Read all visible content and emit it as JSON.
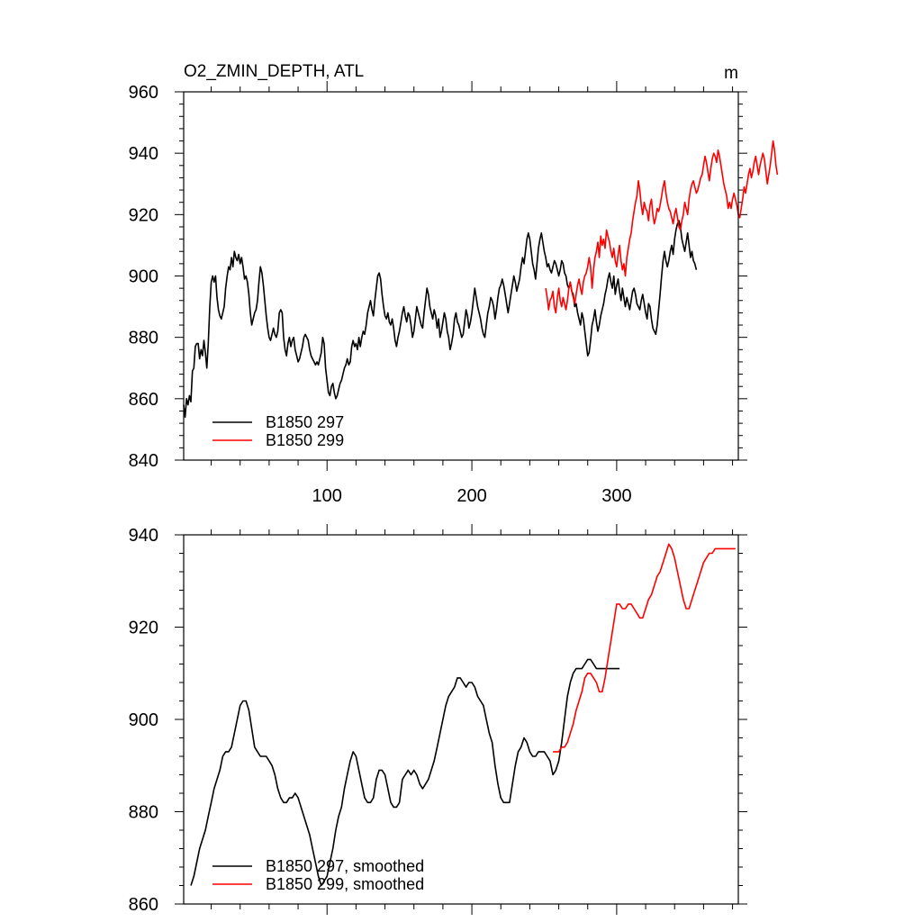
{
  "chart_data": [
    {
      "type": "line",
      "title": "O2_ZMIN_DEPTH, ATL",
      "units": "m",
      "xlim": [
        1,
        384
      ],
      "ylim": [
        840,
        960
      ],
      "yticks": [
        840,
        860,
        880,
        900,
        920,
        940,
        960
      ],
      "xticks": [
        100,
        200,
        300
      ],
      "legend_position": "bottom-left",
      "grid": false,
      "series": [
        {
          "name": "B1850 297",
          "color": "#000000",
          "x_start": 1,
          "x_step": 1,
          "values": [
            858,
            854,
            860,
            858,
            861,
            859,
            869,
            870,
            877,
            878,
            878,
            873,
            876,
            874,
            879,
            875,
            870,
            878,
            890,
            898,
            900,
            898,
            900,
            893,
            889,
            887,
            886,
            888,
            890,
            896,
            900,
            903,
            902,
            906,
            903,
            908,
            906,
            905,
            907,
            904,
            906,
            903,
            899,
            900,
            898,
            894,
            888,
            884,
            886,
            888,
            889,
            892,
            898,
            903,
            901,
            897,
            892,
            887,
            883,
            880,
            879,
            881,
            883,
            881,
            880,
            882,
            888,
            889,
            888,
            880,
            876,
            874,
            878,
            880,
            877,
            879,
            880,
            876,
            874,
            872,
            873,
            875,
            877,
            880,
            881,
            880,
            879,
            876,
            874,
            873,
            872,
            871,
            872,
            871,
            873,
            875,
            880,
            878,
            870,
            866,
            862,
            861,
            864,
            865,
            862,
            860,
            861,
            863,
            865,
            866,
            868,
            870,
            871,
            873,
            871,
            872,
            877,
            879,
            877,
            878,
            876,
            880,
            877,
            880,
            882,
            881,
            884,
            888,
            890,
            892,
            889,
            887,
            892,
            896,
            900,
            901,
            899,
            894,
            890,
            887,
            886,
            888,
            885,
            884,
            886,
            883,
            879,
            877,
            880,
            882,
            885,
            888,
            890,
            887,
            885,
            888,
            887,
            884,
            880,
            882,
            886,
            890,
            888,
            886,
            884,
            883,
            888,
            892,
            896,
            894,
            890,
            888,
            886,
            889,
            887,
            883,
            886,
            880,
            882,
            885,
            888,
            886,
            882,
            880,
            876,
            878,
            881,
            886,
            888,
            885,
            884,
            882,
            880,
            881,
            885,
            889,
            887,
            883,
            885,
            888,
            892,
            896,
            893,
            890,
            888,
            886,
            883,
            881,
            880,
            884,
            888,
            890,
            893,
            892,
            890,
            886,
            889,
            893,
            896,
            897,
            899,
            897,
            894,
            891,
            888,
            891,
            894,
            897,
            900,
            898,
            895,
            897,
            899,
            903,
            906,
            904,
            908,
            912,
            914,
            912,
            908,
            904,
            902,
            899,
            904,
            909,
            912,
            914,
            911,
            908,
            906,
            903,
            904,
            902,
            901,
            903,
            905,
            904,
            902,
            900,
            902,
            905,
            904,
            901,
            900,
            897,
            896,
            898,
            895,
            894,
            890,
            891,
            888,
            886,
            884,
            888,
            886,
            882,
            878,
            874,
            875,
            879,
            884,
            886,
            889,
            885,
            882,
            884,
            887,
            889,
            891,
            894,
            896,
            899,
            901,
            898,
            896,
            900,
            894,
            897,
            899,
            895,
            892,
            896,
            893,
            890,
            893,
            891,
            889,
            892,
            895,
            896,
            894,
            891,
            890,
            889,
            892,
            894,
            891,
            888,
            886,
            891,
            890,
            886,
            883,
            882,
            881,
            884,
            889,
            894,
            900,
            905,
            908,
            905,
            903,
            905,
            908,
            910,
            907,
            912,
            915,
            917,
            918,
            916,
            912,
            910,
            908,
            911,
            914,
            910,
            906,
            908,
            905,
            904,
            902
          ]
        },
        {
          "name": "B1850 299",
          "color": "#ff0000",
          "x_start": 251,
          "x_step": 1,
          "values": [
            896,
            893,
            889,
            892,
            893,
            895,
            890,
            888,
            893,
            896,
            892,
            890,
            893,
            891,
            889,
            892,
            896,
            898,
            895,
            893,
            891,
            894,
            897,
            899,
            896,
            894,
            898,
            900,
            901,
            903,
            906,
            903,
            896,
            902,
            906,
            908,
            911,
            906,
            913,
            910,
            912,
            909,
            915,
            913,
            911,
            908,
            906,
            909,
            905,
            903,
            907,
            910,
            905,
            902,
            904,
            900,
            906,
            909,
            912,
            914,
            918,
            921,
            924,
            926,
            931,
            928,
            923,
            920,
            924,
            922,
            921,
            918,
            923,
            925,
            920,
            917,
            919,
            922,
            921,
            923,
            926,
            929,
            931,
            927,
            924,
            922,
            921,
            919,
            917,
            920,
            922,
            919,
            916,
            915,
            918,
            920,
            924,
            922,
            920,
            925,
            928,
            930,
            931,
            929,
            927,
            928,
            930,
            932,
            933,
            936,
            939,
            937,
            934,
            931,
            935,
            938,
            940,
            939,
            937,
            941,
            939,
            936,
            933,
            930,
            928,
            926,
            922,
            924,
            922,
            925,
            927,
            925,
            923,
            920,
            919,
            922,
            925,
            929,
            927,
            930,
            933,
            935,
            932,
            934,
            937,
            939,
            936,
            933,
            936,
            938,
            940,
            938,
            934,
            930,
            933,
            936,
            940,
            944,
            941,
            936,
            933
          ]
        }
      ]
    },
    {
      "type": "line",
      "xlim": [
        1,
        384
      ],
      "ylim": [
        860,
        940
      ],
      "yticks": [
        860,
        880,
        900,
        920,
        940
      ],
      "legend_position": "bottom-left",
      "grid": false,
      "series": [
        {
          "name": "B1850 297, smoothed",
          "color": "#000000",
          "x": [
            6,
            8,
            10,
            12,
            14,
            16,
            18,
            20,
            22,
            24,
            26,
            28,
            30,
            32,
            34,
            36,
            38,
            40,
            42,
            44,
            46,
            48,
            50,
            52,
            54,
            56,
            58,
            60,
            62,
            64,
            66,
            68,
            70,
            72,
            74,
            76,
            78,
            80,
            82,
            84,
            86,
            88,
            90,
            92,
            94,
            96,
            98,
            100,
            102,
            104,
            106,
            108,
            110,
            112,
            114,
            116,
            118,
            120,
            122,
            124,
            126,
            128,
            130,
            132,
            134,
            136,
            138,
            140,
            142,
            144,
            146,
            148,
            150,
            152,
            154,
            156,
            158,
            160,
            162,
            164,
            166,
            168,
            170,
            172,
            174,
            176,
            178,
            180,
            182,
            184,
            186,
            188,
            190,
            192,
            194,
            196,
            198,
            200,
            202,
            204,
            206,
            208,
            210,
            212,
            214,
            216,
            218,
            220,
            222,
            224,
            226,
            228,
            230,
            232,
            234,
            236,
            238,
            240,
            242,
            244,
            246,
            248,
            250,
            252,
            254,
            256,
            258,
            260,
            262,
            264,
            266,
            268,
            270,
            272,
            274,
            276,
            278,
            280,
            282,
            284,
            286,
            288,
            290,
            292,
            294,
            296,
            298,
            300,
            302
          ],
          "values": [
            864,
            866,
            869,
            872,
            874,
            876,
            879,
            882,
            885,
            887,
            889,
            892,
            893,
            893,
            894,
            897,
            900,
            903,
            904,
            904,
            902,
            898,
            894,
            893,
            892,
            892,
            892,
            891,
            890,
            888,
            885,
            883,
            882,
            882,
            883,
            883,
            884,
            883,
            881,
            879,
            877,
            875,
            872,
            869,
            866,
            864,
            865,
            866,
            869,
            872,
            876,
            879,
            881,
            885,
            888,
            891,
            893,
            892,
            889,
            886,
            883,
            882,
            882,
            883,
            887,
            889,
            889,
            888,
            885,
            882,
            881,
            881,
            882,
            887,
            888,
            889,
            888,
            889,
            888,
            886,
            885,
            886,
            887,
            889,
            891,
            894,
            897,
            900,
            903,
            905,
            906,
            907,
            909,
            909,
            908,
            907,
            908,
            908,
            907,
            905,
            904,
            903,
            900,
            897,
            895,
            890,
            886,
            883,
            882,
            882,
            882,
            886,
            890,
            893,
            894,
            896,
            895,
            893,
            892,
            892,
            893,
            893,
            893,
            892,
            891,
            888,
            889,
            891,
            895,
            900,
            905,
            908,
            910,
            911,
            911,
            911,
            912,
            913,
            913,
            912,
            911,
            911,
            911,
            911,
            911,
            911,
            911,
            911,
            911
          ]
        },
        {
          "name": "B1850 299, smoothed",
          "color": "#ff0000",
          "x": [
            256,
            258,
            260,
            262,
            264,
            266,
            268,
            270,
            272,
            274,
            276,
            278,
            280,
            282,
            284,
            286,
            288,
            290,
            292,
            294,
            296,
            298,
            300,
            302,
            304,
            306,
            308,
            310,
            312,
            314,
            316,
            318,
            320,
            322,
            324,
            326,
            328,
            330,
            332,
            334,
            336,
            338,
            340,
            342,
            344,
            346,
            348,
            350,
            352,
            354,
            356,
            358,
            360,
            362,
            364,
            366,
            368,
            370,
            372,
            374,
            376,
            378,
            380,
            382
          ],
          "values": [
            893,
            893,
            893,
            894,
            894,
            895,
            897,
            899,
            902,
            904,
            906,
            909,
            910,
            910,
            909,
            908,
            906,
            906,
            909,
            913,
            917,
            921,
            925,
            925,
            924,
            924,
            925,
            925,
            924,
            923,
            922,
            922,
            924,
            926,
            927,
            929,
            931,
            932,
            934,
            936,
            938,
            937,
            935,
            932,
            929,
            926,
            924,
            924,
            926,
            928,
            930,
            932,
            934,
            935,
            936,
            936,
            937,
            937,
            937,
            937,
            937,
            937,
            937,
            937
          ]
        }
      ]
    }
  ]
}
